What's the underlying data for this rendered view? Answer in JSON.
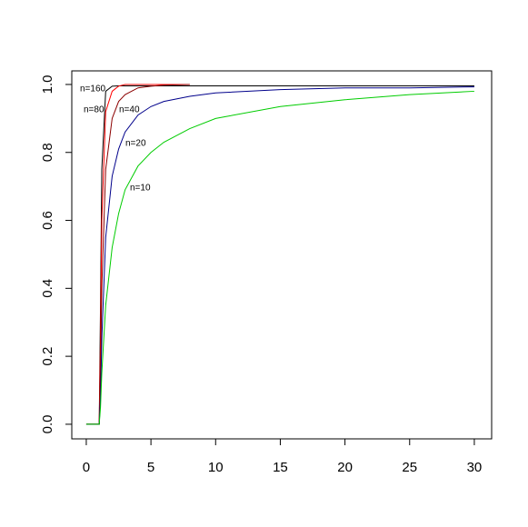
{
  "chart_data": {
    "type": "line",
    "x": [
      0,
      1,
      1.1,
      1.2,
      1.5,
      2,
      2.5,
      3,
      4,
      5,
      6,
      8,
      10,
      15,
      20,
      25,
      30
    ],
    "series": [
      {
        "name": "n=160",
        "color": "#000000",
        "values": [
          0,
          0,
          0.35,
          0.75,
          0.98,
          0.995,
          0.996,
          0.996,
          0.996,
          0.996,
          0.996,
          0.996,
          0.996,
          0.996,
          0.996,
          0.996,
          0.996
        ]
      },
      {
        "name": "n=80",
        "color": "#ff0000",
        "values": [
          0,
          0,
          0.25,
          0.6,
          0.92,
          0.98,
          0.995,
          1,
          1,
          1,
          1,
          1,
          null,
          null,
          null,
          null,
          null
        ]
      },
      {
        "name": "n=40",
        "color": "#8b0000",
        "values": [
          0,
          0,
          0.15,
          0.4,
          0.75,
          0.9,
          0.95,
          0.97,
          0.99,
          0.995,
          0.998,
          1,
          null,
          null,
          null,
          null,
          null
        ]
      },
      {
        "name": "n=20",
        "color": "#00008b",
        "values": [
          0,
          0,
          0.08,
          0.25,
          0.55,
          0.73,
          0.81,
          0.86,
          0.91,
          0.935,
          0.95,
          0.965,
          0.975,
          0.985,
          0.99,
          0.99,
          0.993
        ]
      },
      {
        "name": "n=10",
        "color": "#00cc00",
        "values": [
          0,
          0,
          0.05,
          0.15,
          0.35,
          0.52,
          0.62,
          0.69,
          0.76,
          0.8,
          0.83,
          0.87,
          0.9,
          0.935,
          0.955,
          0.97,
          0.98
        ]
      }
    ],
    "xlim": [
      -1.12,
      31.34
    ],
    "ylim": [
      -0.043,
      1.04
    ],
    "xticks": [
      0,
      5,
      10,
      15,
      20,
      25,
      30
    ],
    "yticks": [
      {
        "value": 0,
        "label": "0.0"
      },
      {
        "value": 0.2,
        "label": "0.2"
      },
      {
        "value": 0.4,
        "label": "0.4"
      },
      {
        "value": 0.6,
        "label": "0.6"
      },
      {
        "value": 0.8,
        "label": "0.8"
      },
      {
        "value": 1,
        "label": "1.0"
      }
    ]
  }
}
